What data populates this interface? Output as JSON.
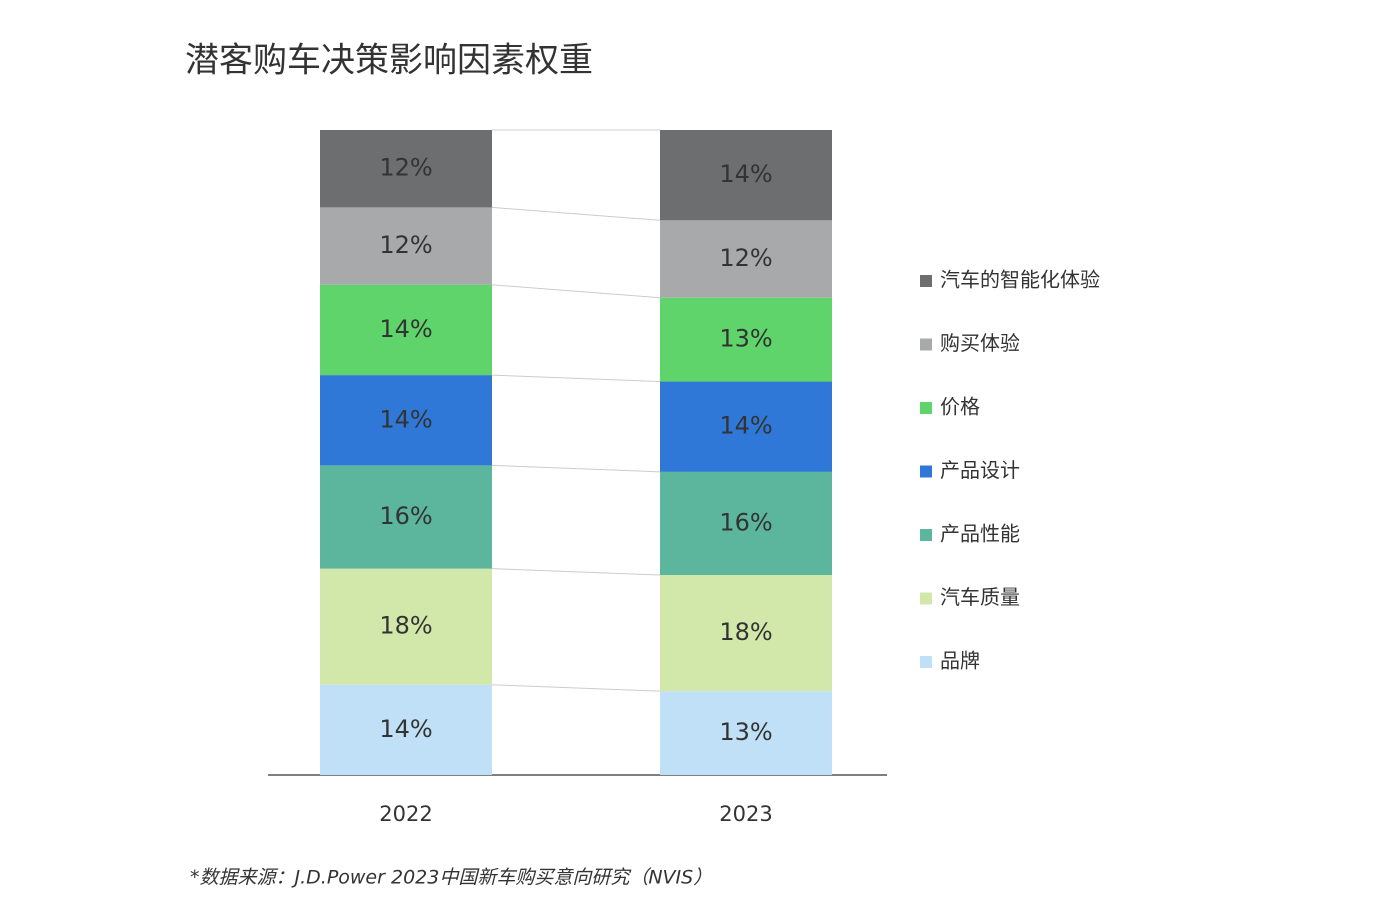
{
  "chart_data": {
    "type": "stacked_bar_100",
    "title": "潜客购车决策影响因素权重",
    "source": "*数据来源：J.D.Power 2023中国新车购买意向研究（NVIS）",
    "categories": [
      "2022",
      "2023"
    ],
    "legend": "right",
    "series": [
      {
        "name": "品牌",
        "color": "#bfe0f7",
        "values": [
          14,
          13
        ],
        "value_labels": [
          "14%",
          "13%"
        ]
      },
      {
        "name": "汽车质量",
        "color": "#d2e8ab",
        "values": [
          18,
          18
        ],
        "value_labels": [
          "18%",
          "18%"
        ]
      },
      {
        "name": "产品性能",
        "color": "#5cb59d",
        "values": [
          16,
          16
        ],
        "value_labels": [
          "16%",
          "16%"
        ]
      },
      {
        "name": "产品设计",
        "color": "#2f78d8",
        "values": [
          14,
          14
        ],
        "value_labels": [
          "14%",
          "14%"
        ]
      },
      {
        "name": "价格",
        "color": "#5fd46b",
        "values": [
          14,
          13
        ],
        "value_labels": [
          "14%",
          "13%"
        ]
      },
      {
        "name": "购买体验",
        "color": "#a8a9ab",
        "values": [
          12,
          12
        ],
        "value_labels": [
          "12%",
          "12%"
        ]
      },
      {
        "name": "汽车的智能化体验",
        "color": "#6d6e70",
        "values": [
          12,
          14
        ],
        "value_labels": [
          "12%",
          "14%"
        ]
      }
    ]
  }
}
